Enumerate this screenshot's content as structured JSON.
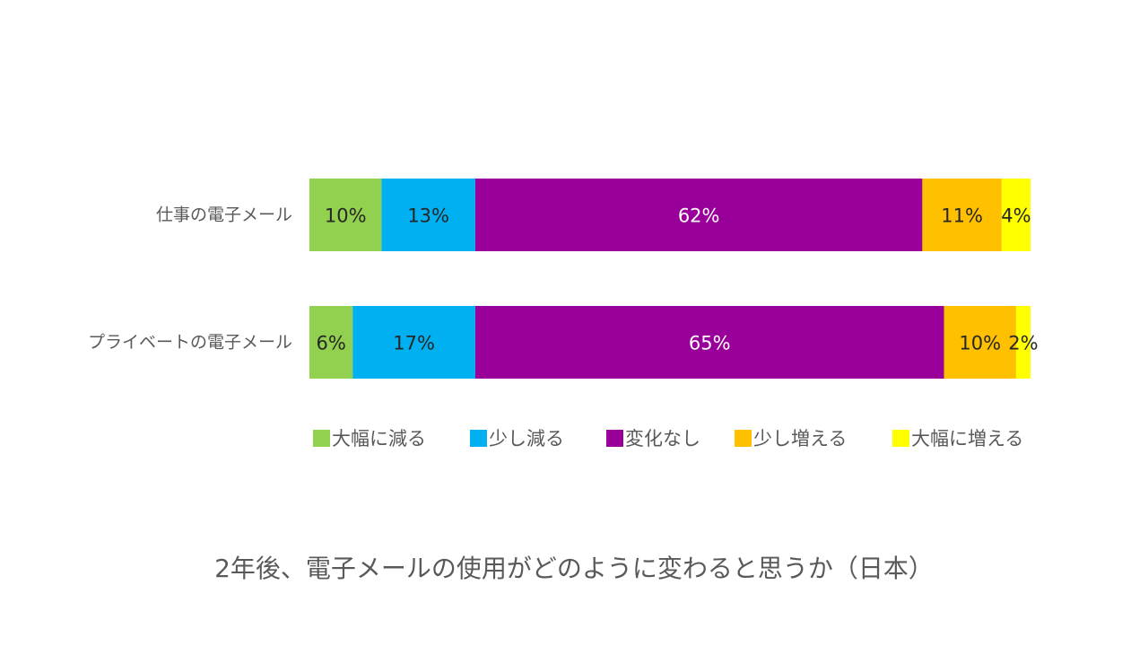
{
  "chart_data": {
    "type": "bar",
    "orientation": "horizontal",
    "stacked": true,
    "percent_stacked": true,
    "title": "2年後、電子メールの使用がどのように変わると思うか（日本）",
    "categories": [
      "仕事の電子メール",
      "プライベートの電子メール"
    ],
    "series": [
      {
        "name": "大幅に減る",
        "color": "#92d050",
        "values": [
          10,
          6
        ],
        "labels": [
          "10%",
          "6%"
        ]
      },
      {
        "name": "少し減る",
        "color": "#00b0f0",
        "values": [
          13,
          17
        ],
        "labels": [
          "13%",
          "17%"
        ]
      },
      {
        "name": "変化なし",
        "color": "#990099",
        "values": [
          62,
          65
        ],
        "labels": [
          "62%",
          "65%"
        ]
      },
      {
        "name": "少し増える",
        "color": "#ffc000",
        "values": [
          11,
          10
        ],
        "labels": [
          "11%",
          "10%"
        ]
      },
      {
        "name": "大幅に増える",
        "color": "#ffff00",
        "values": [
          4,
          2
        ],
        "labels": [
          "4%",
          "2%"
        ]
      }
    ],
    "legend_position": "bottom",
    "grid": false,
    "xlim": [
      0,
      100
    ]
  }
}
